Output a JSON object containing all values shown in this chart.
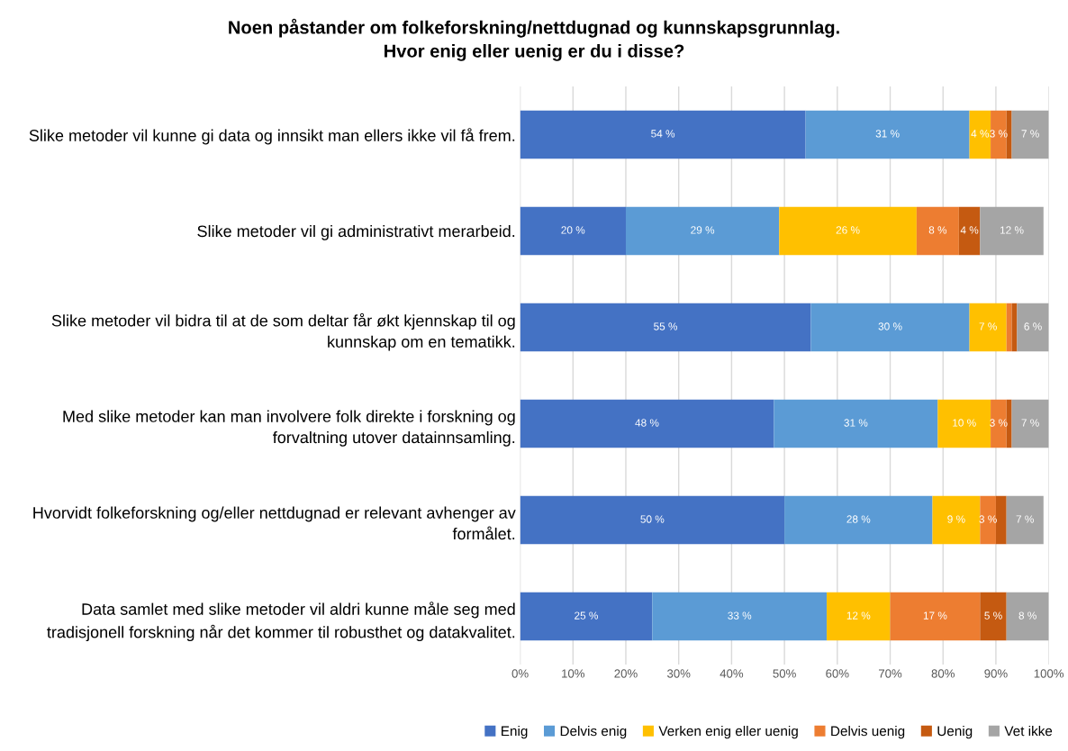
{
  "chart_data": {
    "type": "bar",
    "orientation": "horizontal",
    "stacked": true,
    "title": "Noen påstander om folkeforskning/nettdugnad og kunnskapsgrunnlag.\nHvor enig eller uenig er du i disse?",
    "categories": [
      "Slike metoder vil kunne gi data og innsikt man ellers ikke vil få frem.",
      "Slike metoder vil gi administrativt merarbeid.",
      "Slike metoder vil bidra til at de som deltar får økt kjennskap til og\nkunnskap om en tematikk.",
      "Med slike metoder kan man involvere folk direkte i forskning og\nforvaltning utover datainnsamling.",
      "Hvorvidt folkeforskning og/eller nettdugnad er relevant avhenger av\nformålet.",
      "Data samlet med slike metoder vil aldri kunne måle seg med\ntradisjonell forskning når det kommer til robusthet og datakvalitet."
    ],
    "series": [
      {
        "name": "Enig",
        "color": "#4472c4",
        "values": [
          54,
          20,
          55,
          48,
          50,
          25
        ],
        "value_labels": [
          "54 %",
          "20 %",
          "55 %",
          "48 %",
          "50 %",
          "25 %"
        ]
      },
      {
        "name": "Delvis enig",
        "color": "#5b9bd5",
        "values": [
          31,
          29,
          30,
          31,
          28,
          33
        ],
        "value_labels": [
          "31 %",
          "29 %",
          "30 %",
          "31 %",
          "28 %",
          "33 %"
        ]
      },
      {
        "name": "Verken enig eller uenig",
        "color": "#ffc000",
        "values": [
          4,
          26,
          7,
          10,
          9,
          12
        ],
        "value_labels": [
          "4 %",
          "26 %",
          "7 %",
          "10 %",
          "9 %",
          "12 %"
        ]
      },
      {
        "name": "Delvis uenig",
        "color": "#ed7d31",
        "values": [
          3,
          8,
          1,
          3,
          3,
          17
        ],
        "value_labels": [
          "3 %",
          "8 %",
          null,
          "3 %",
          "3 %",
          "17 %"
        ]
      },
      {
        "name": "Uenig",
        "color": "#c55a11",
        "values": [
          1,
          4,
          1,
          1,
          2,
          5
        ],
        "value_labels": [
          null,
          "4 %",
          null,
          null,
          null,
          "5 %"
        ]
      },
      {
        "name": "Vet ikke",
        "color": "#a5a5a5",
        "values": [
          7,
          12,
          6,
          7,
          7,
          8
        ],
        "value_labels": [
          "7 %",
          "12 %",
          "6 %",
          "7 %",
          "7 %",
          "8 %"
        ]
      }
    ],
    "xlim": [
      0,
      100
    ],
    "xticks": [
      {
        "value": 0,
        "label": "0%"
      },
      {
        "value": 10,
        "label": "10%"
      },
      {
        "value": 20,
        "label": "20%"
      },
      {
        "value": 30,
        "label": "30%"
      },
      {
        "value": 40,
        "label": "40%"
      },
      {
        "value": 50,
        "label": "50%"
      },
      {
        "value": 60,
        "label": "60%"
      },
      {
        "value": 70,
        "label": "70%"
      },
      {
        "value": 80,
        "label": "80%"
      },
      {
        "value": 90,
        "label": "90%"
      },
      {
        "value": 100,
        "label": "100%"
      }
    ],
    "grid": "x",
    "legend": "bottom"
  }
}
